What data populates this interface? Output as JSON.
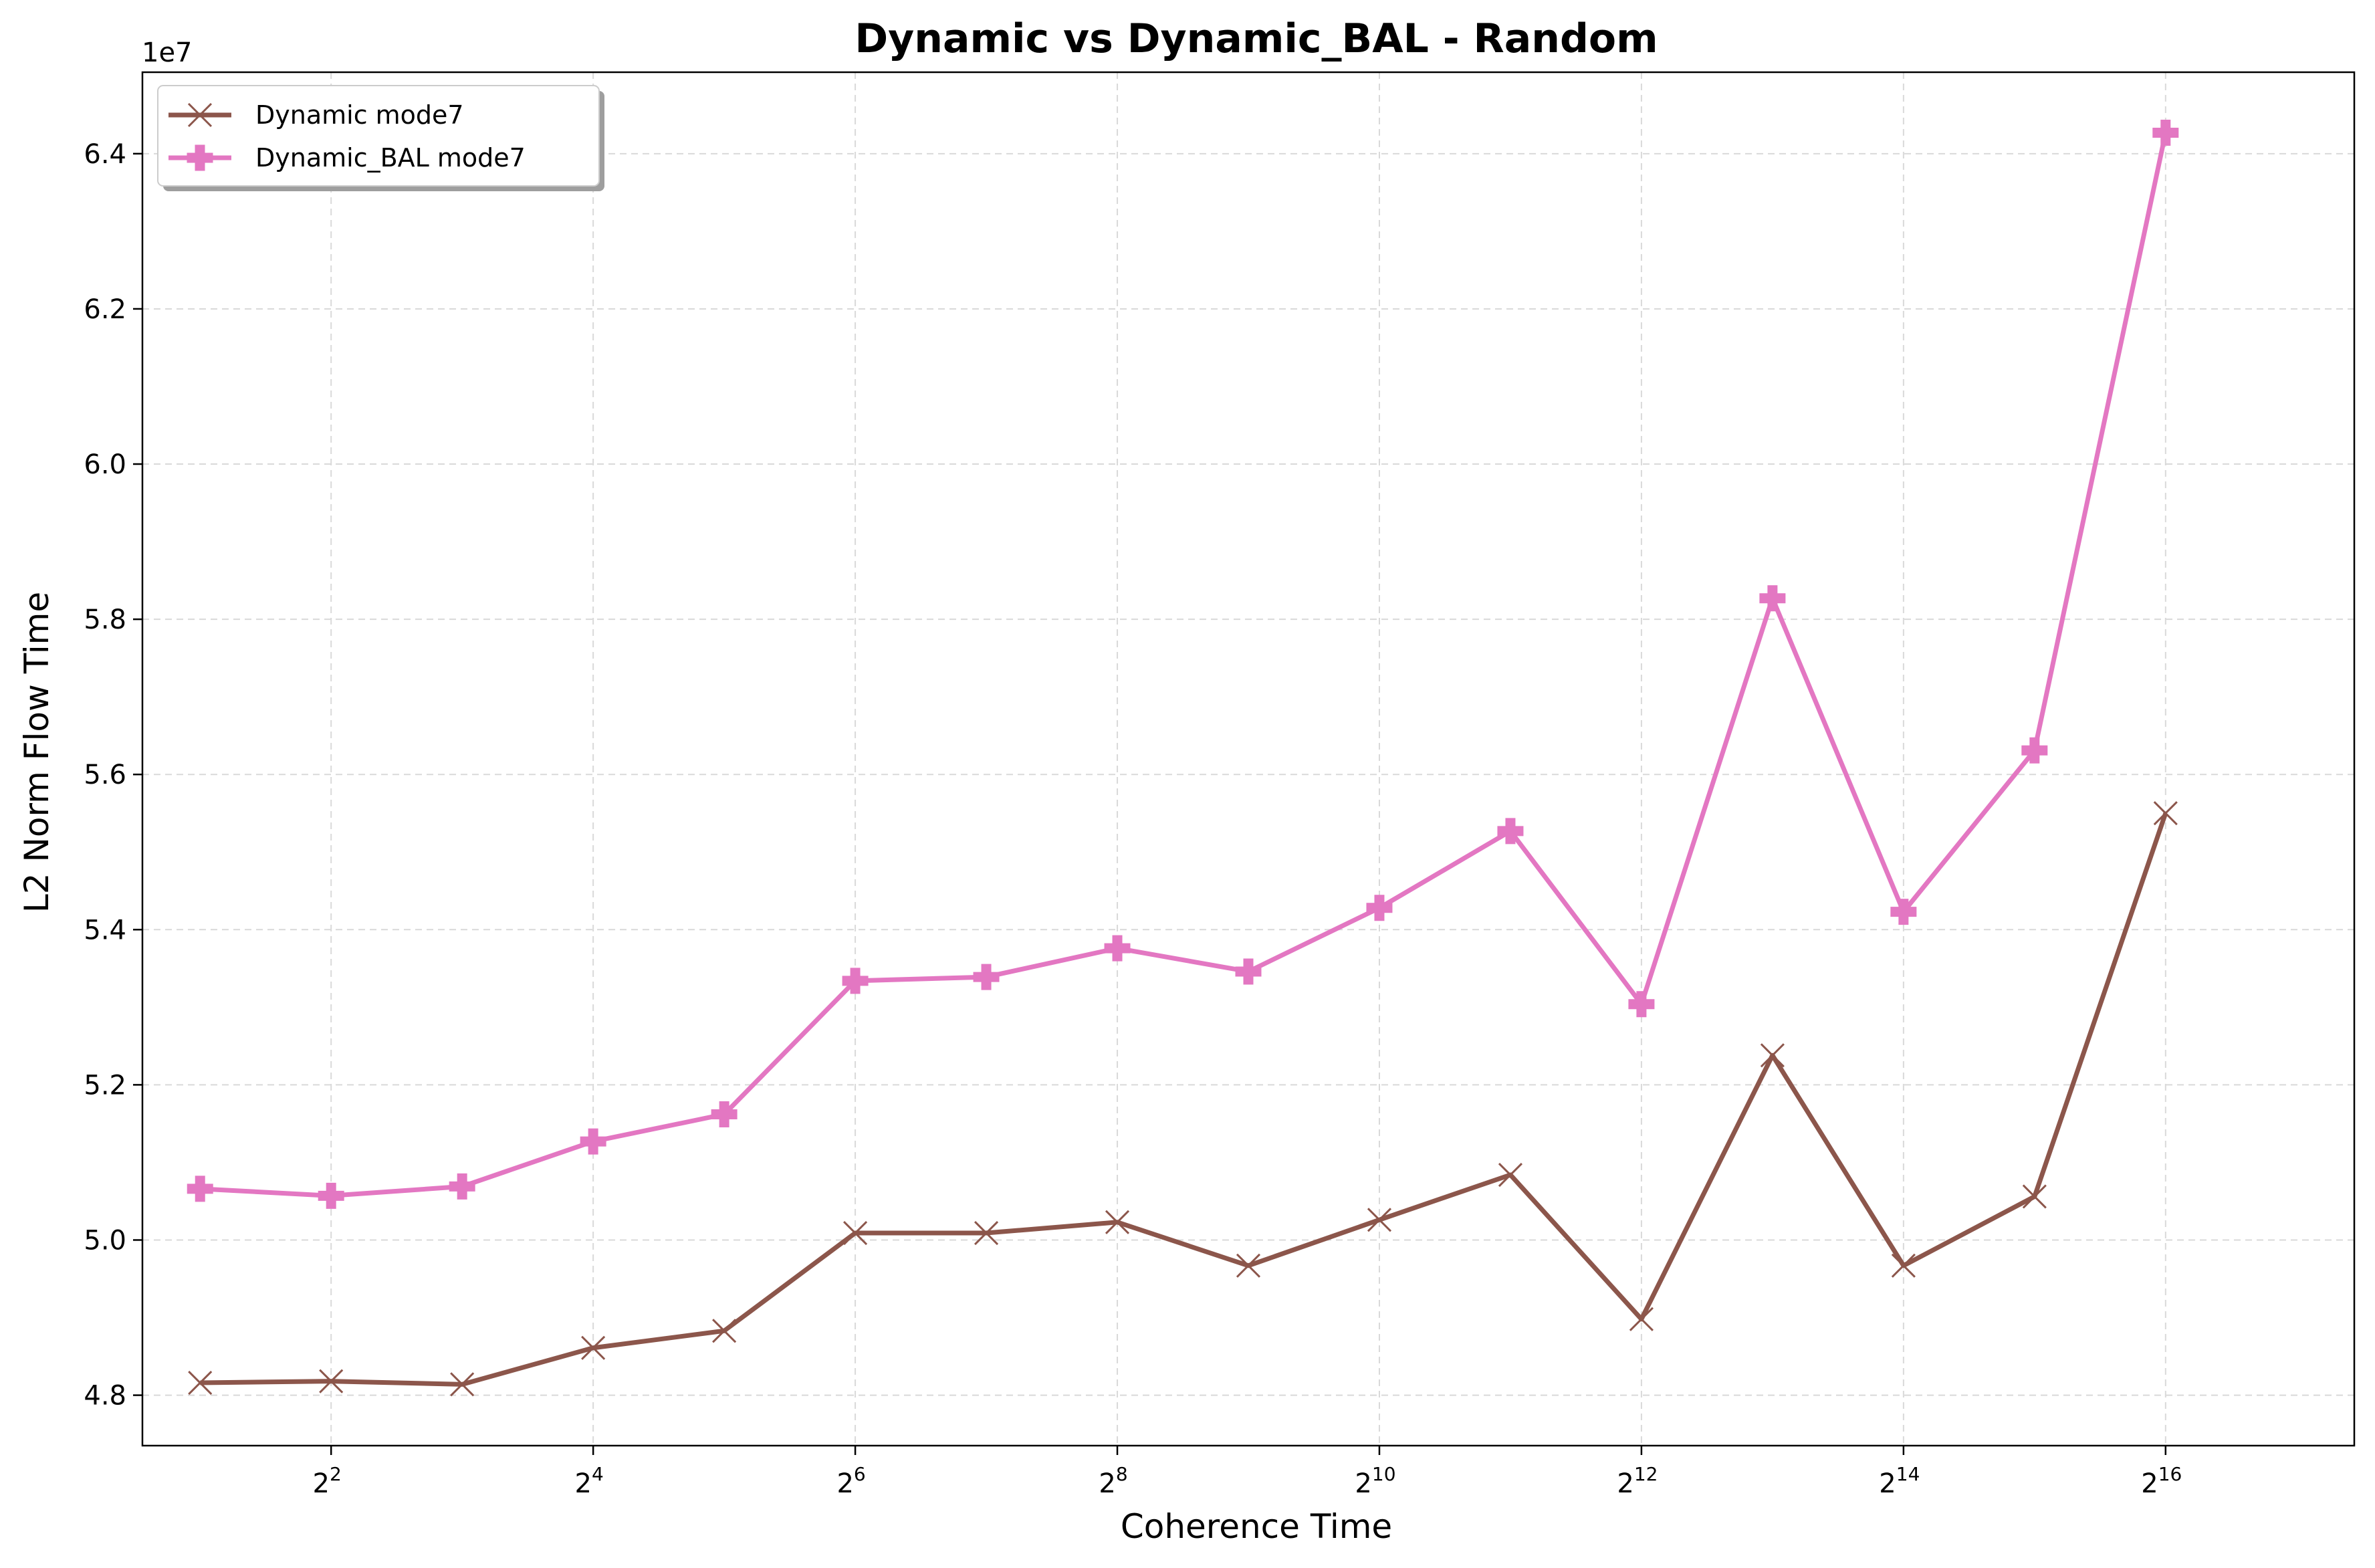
{
  "chart_data": {
    "type": "line",
    "title": "Dynamic vs Dynamic_BAL - Random",
    "xlabel": "Coherence Time",
    "ylabel": "L2 Norm Flow Time",
    "y_offset_label": "1e7",
    "x_scale": "log2",
    "x": [
      2,
      4,
      8,
      16,
      32,
      64,
      128,
      256,
      512,
      1024,
      2048,
      4096,
      8192,
      16384,
      32768,
      65536
    ],
    "x_tick_values": [
      4,
      16,
      64,
      256,
      1024,
      4096,
      16384,
      65536
    ],
    "x_tick_labels": [
      {
        "base": "2",
        "exp": "2"
      },
      {
        "base": "2",
        "exp": "4"
      },
      {
        "base": "2",
        "exp": "6"
      },
      {
        "base": "2",
        "exp": "8"
      },
      {
        "base": "2",
        "exp": "10"
      },
      {
        "base": "2",
        "exp": "12"
      },
      {
        "base": "2",
        "exp": "14"
      },
      {
        "base": "2",
        "exp": "16"
      }
    ],
    "xlim_log2": [
      0.56,
      17.44
    ],
    "ylim": [
      47350000,
      65050000
    ],
    "y_ticks": [
      48000000,
      50000000,
      52000000,
      54000000,
      56000000,
      58000000,
      60000000,
      62000000,
      64000000
    ],
    "y_tick_labels": [
      "4.8",
      "5.0",
      "5.2",
      "5.4",
      "5.6",
      "5.8",
      "6.0",
      "6.2",
      "6.4"
    ],
    "grid": true,
    "legend_position": "top-left",
    "series": [
      {
        "name": "Dynamic mode7",
        "color": "#8c564b",
        "marker": "x",
        "values": [
          48160000,
          48180000,
          48140000,
          48610000,
          48830000,
          50090000,
          50090000,
          50230000,
          49670000,
          50260000,
          50840000,
          48980000,
          52380000,
          49670000,
          50560000,
          55500000
        ]
      },
      {
        "name": "Dynamic_BAL mode7",
        "color": "#e377c2",
        "marker": "P",
        "values": [
          50660000,
          50570000,
          50690000,
          51270000,
          51620000,
          53340000,
          53390000,
          53760000,
          53460000,
          54280000,
          55270000,
          53040000,
          58270000,
          54230000,
          56310000,
          64270000
        ]
      }
    ]
  }
}
